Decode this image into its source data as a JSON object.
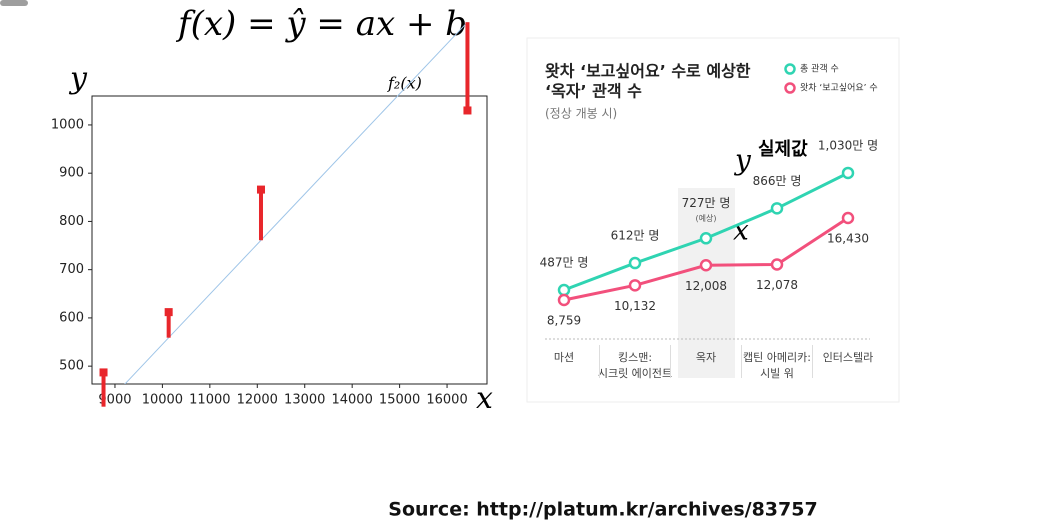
{
  "formula": "f(x) = ŷ = ax + b",
  "source": "Source: http://platum.kr/archives/83757",
  "chart_data": [
    {
      "type": "scatter",
      "x_label": "x",
      "y_label": "y",
      "line_label": "f₂(x)",
      "x": [
        8759,
        10132,
        12078,
        16430
      ],
      "values": [
        487,
        612,
        866,
        1030
      ],
      "predicted": [
        416,
        559,
        761,
        1213
      ],
      "color": "#e8262b",
      "line_color": "#9fc5e8",
      "xlim": [
        8516,
        16842
      ],
      "ylim": [
        463,
        1060
      ],
      "xticks": [
        9000,
        10000,
        11000,
        12000,
        13000,
        14000,
        15000,
        16000
      ],
      "yticks": [
        500,
        600,
        700,
        800,
        900,
        1000
      ]
    },
    {
      "type": "line",
      "title": [
        "왓차 ‘보고싶어요’ 수로 예상한",
        "‘옥자’ 관객 수"
      ],
      "subtitle": "(정상 개봉 시)",
      "categories": [
        [
          "마션"
        ],
        [
          "킹스맨:",
          "시크릿 에이전트"
        ],
        [
          "옥자"
        ],
        [
          "캡틴 아메리카:",
          "시빌 워"
        ],
        [
          "인터스텔라"
        ]
      ],
      "series": [
        {
          "name": "총 관객 수",
          "color": "#2fd4b2",
          "values": [
            487,
            612,
            727,
            866,
            1030
          ],
          "value_labels": [
            "487만 명",
            "612만 명",
            "727만 명",
            "866만 명",
            "1,030만 명"
          ]
        },
        {
          "name": "왓차 ‘보고싶어요’ 수",
          "color": "#f2507c",
          "axis": "y2",
          "values": [
            8759,
            10132,
            12008,
            12078,
            16430
          ],
          "value_labels": [
            "8,759",
            "10,132",
            "12,008",
            "12,078",
            "16,430"
          ]
        }
      ],
      "annotation": "(예상)",
      "handwritten": [
        "y",
        "실제값",
        "x"
      ],
      "ylim": [
        255,
        1183
      ],
      "y2lim": [
        5017,
        23726
      ]
    }
  ]
}
